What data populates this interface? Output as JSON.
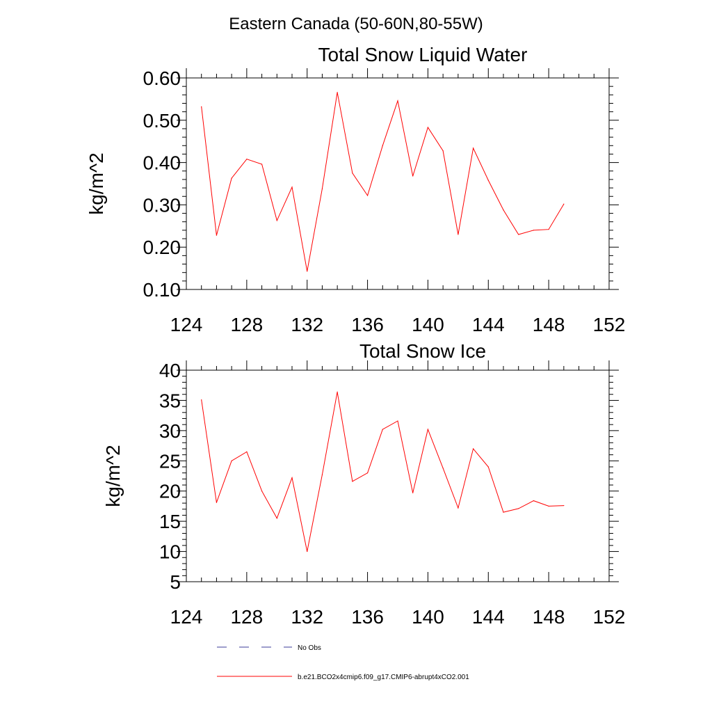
{
  "figure_title": "Eastern Canada (50-60N,80-55W)",
  "legend": [
    {
      "label": "No Obs",
      "color": "#3b3b9a",
      "style": "dashed"
    },
    {
      "label": "b.e21.BCO2x4cmip6.f09_g17.CMIP6-abrupt4xCO2.001",
      "color": "#ff0000",
      "style": "solid"
    }
  ],
  "chart_data": [
    {
      "type": "line",
      "title": "Total Snow Liquid Water",
      "xlabel": "",
      "ylabel": "kg/m^2",
      "xlim": [
        124,
        152
      ],
      "ylim": [
        0.1,
        0.6
      ],
      "xticks": [
        "124",
        "128",
        "132",
        "136",
        "140",
        "144",
        "148",
        "152"
      ],
      "yticks": [
        "0.10",
        "0.20",
        "0.30",
        "0.40",
        "0.50",
        "0.60"
      ],
      "grid": false,
      "series": [
        {
          "name": "b.e21.BCO2x4cmip6.f09_g17.CMIP6-abrupt4xCO2.001",
          "color": "#ff0000",
          "x": [
            125,
            126,
            127,
            128,
            129,
            130,
            131,
            132,
            133,
            134,
            135,
            136,
            137,
            138,
            139,
            140,
            141,
            142,
            143,
            144,
            145,
            146,
            147,
            148,
            149
          ],
          "y": [
            0.532,
            0.228,
            0.363,
            0.408,
            0.396,
            0.263,
            0.342,
            0.143,
            0.338,
            0.566,
            0.375,
            0.322,
            0.44,
            0.546,
            0.368,
            0.483,
            0.428,
            0.23,
            0.434,
            0.358,
            0.288,
            0.23,
            0.24,
            0.242,
            0.302
          ]
        }
      ]
    },
    {
      "type": "line",
      "title": "Total Snow Ice",
      "xlabel": "",
      "ylabel": "kg/m^2",
      "xlim": [
        124,
        152
      ],
      "ylim": [
        5,
        40
      ],
      "xticks": [
        "124",
        "128",
        "132",
        "136",
        "140",
        "144",
        "148",
        "152"
      ],
      "yticks": [
        "5",
        "10",
        "15",
        "20",
        "25",
        "30",
        "35",
        "40"
      ],
      "grid": false,
      "series": [
        {
          "name": "b.e21.BCO2x4cmip6.f09_g17.CMIP6-abrupt4xCO2.001",
          "color": "#ff0000",
          "x": [
            125,
            126,
            127,
            128,
            129,
            130,
            131,
            132,
            133,
            134,
            135,
            136,
            137,
            138,
            139,
            140,
            141,
            142,
            143,
            144,
            145,
            146,
            147,
            148,
            149
          ],
          "y": [
            35.1,
            18.1,
            25.0,
            26.5,
            20.0,
            15.5,
            22.2,
            10.0,
            22.7,
            36.4,
            21.6,
            23.0,
            30.2,
            31.6,
            19.7,
            30.2,
            23.8,
            17.2,
            27.0,
            24.0,
            16.5,
            17.1,
            18.4,
            17.5,
            17.6
          ]
        }
      ]
    }
  ]
}
